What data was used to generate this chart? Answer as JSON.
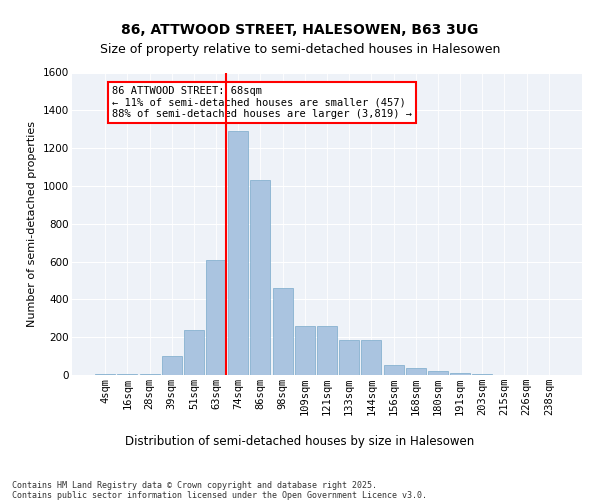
{
  "title1": "86, ATTWOOD STREET, HALESOWEN, B63 3UG",
  "title2": "Size of property relative to semi-detached houses in Halesowen",
  "xlabel": "Distribution of semi-detached houses by size in Halesowen",
  "ylabel": "Number of semi-detached properties",
  "bins": [
    "4sqm",
    "16sqm",
    "28sqm",
    "39sqm",
    "51sqm",
    "63sqm",
    "74sqm",
    "86sqm",
    "98sqm",
    "109sqm",
    "121sqm",
    "133sqm",
    "144sqm",
    "156sqm",
    "168sqm",
    "180sqm",
    "191sqm",
    "203sqm",
    "215sqm",
    "226sqm",
    "238sqm"
  ],
  "bar_heights": [
    5,
    5,
    5,
    100,
    240,
    610,
    1290,
    1030,
    460,
    260,
    260,
    185,
    185,
    55,
    35,
    20,
    8,
    3,
    2,
    1,
    1
  ],
  "bar_color": "#aac4e0",
  "bar_edge_color": "#7aaaca",
  "vline_color": "red",
  "annotation_text": "86 ATTWOOD STREET: 68sqm\n← 11% of semi-detached houses are smaller (457)\n88% of semi-detached houses are larger (3,819) →",
  "annotation_box_color": "white",
  "annotation_box_edge_color": "red",
  "ylim": [
    0,
    1600
  ],
  "yticks": [
    0,
    200,
    400,
    600,
    800,
    1000,
    1200,
    1400,
    1600
  ],
  "background_color": "#eef2f8",
  "footer_text": "Contains HM Land Registry data © Crown copyright and database right 2025.\nContains public sector information licensed under the Open Government Licence v3.0.",
  "title1_fontsize": 10,
  "title2_fontsize": 9,
  "xlabel_fontsize": 8.5,
  "ylabel_fontsize": 8,
  "tick_fontsize": 7.5,
  "footer_fontsize": 6,
  "ann_fontsize": 7.5
}
